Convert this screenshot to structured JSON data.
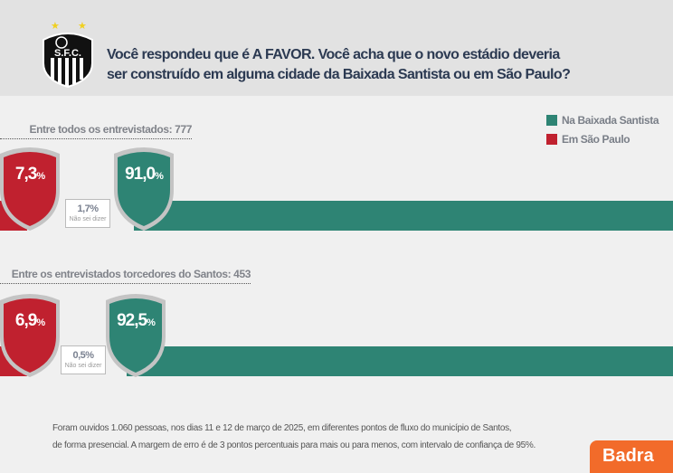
{
  "header": {
    "question_line1": "Você respondeu que é A FAVOR. Você acha que o novo estádio deveria",
    "question_line2": "ser construído em alguma cidade da Baixada Santista ou em São Paulo?",
    "logo_text": "S.F.C."
  },
  "legend": [
    {
      "label": "Na Baixada Santista",
      "color": "#2e8474"
    },
    {
      "label": "Em São Paulo",
      "color": "#c0212f"
    }
  ],
  "groups": [
    {
      "subtitle": "Entre todos os entrevistados: 777",
      "sp": "7,3",
      "baixada": "91,0",
      "nsd": "1,7",
      "nsd_label": "Não sei dizer",
      "pct": "%"
    },
    {
      "subtitle": "Entre os entrevistados torcedores do Santos: 453",
      "sp": "6,9",
      "baixada": "92,5",
      "nsd": "0,5",
      "nsd_label": "Não sei dizer",
      "pct": "%"
    }
  ],
  "footer": {
    "line1": "Foram ouvidos 1.060 pessoas, nos dias 11 e 12 de março de 2025, em diferentes pontos de fluxo do município de Santos,",
    "line2": "de forma presencial. A margem de erro é de 3 pontos percentuais para mais ou para menos, com intervalo de confiança de 95%."
  },
  "brand": "Badra"
}
